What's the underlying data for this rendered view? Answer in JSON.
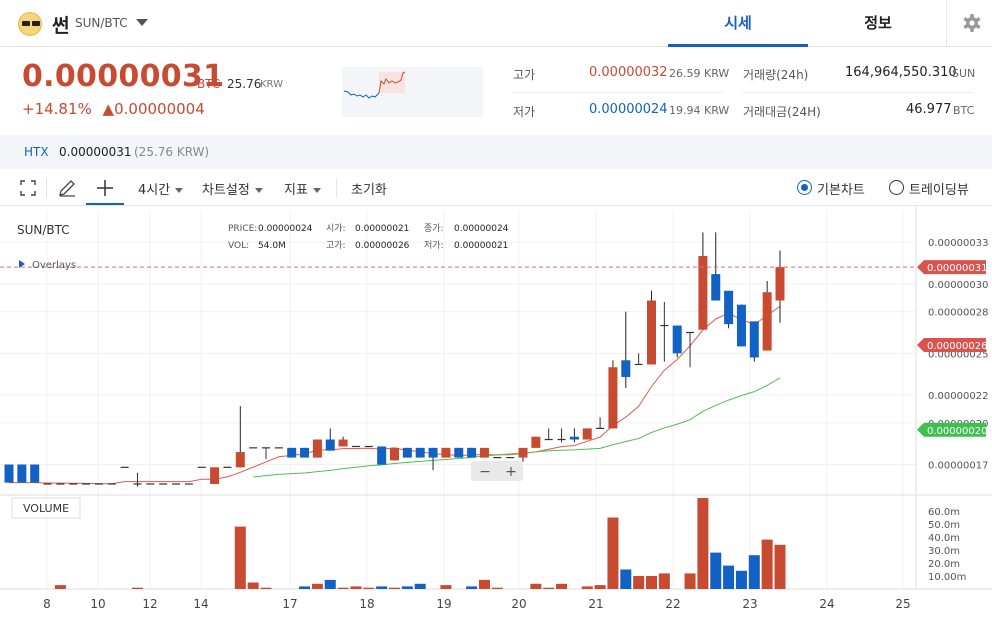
{
  "header": {
    "coin_name": "썬",
    "pair": "SUN/BTC",
    "tabs": [
      {
        "label": "시세",
        "active": true
      },
      {
        "label": "정보",
        "active": false
      }
    ]
  },
  "price": {
    "current": "0.00000031",
    "unit": "BTC",
    "krw": "25.76",
    "krw_unit": "KRW",
    "change_pct": "+14.81%",
    "change_abs": "▲0.00000004"
  },
  "stats": {
    "high_label": "고가",
    "high_value": "0.00000032",
    "high_krw": "26.59 KRW",
    "low_label": "저가",
    "low_value": "0.00000024",
    "low_krw": "19.94 KRW",
    "volume_label": "거래량(24h)",
    "volume_value": "164,964,550.310",
    "volume_unit": "SUN",
    "amount_label": "거래대금(24H)",
    "amount_value": "46.977",
    "amount_unit": "BTC"
  },
  "exchange": {
    "name": "HTX",
    "price": "0.00000031",
    "krw": "(25.76 KRW)"
  },
  "toolbar": {
    "interval": "4시간",
    "chart_settings": "차트설정",
    "indicators": "지표",
    "reset": "초기화",
    "basic_chart": "기본차트",
    "tradingview": "트레이딩뷰"
  },
  "colors": {
    "up": "#c84a31",
    "down": "#1261c4",
    "accent": "#1261c4",
    "ma_fast": "#e05a4f",
    "ma_slow": "#4cc24c"
  },
  "chart_data": {
    "type": "candlestick",
    "title": "SUN/BTC",
    "overlays_label": "Overlays",
    "volume_label": "VOLUME",
    "legend": {
      "price_label": "PRICE:",
      "price": "0.00000024",
      "open_label": "시가:",
      "open": "0.00000021",
      "close_label": "종가:",
      "close": "0.00000024",
      "vol_label": "VOL:",
      "vol": "54.0M",
      "high_label": "고가:",
      "high": "0.00000026",
      "low_label": "저가:",
      "low": "0.00000021"
    },
    "y_ticks": [
      "0.00000033",
      "0.00000030",
      "0.00000028",
      "0.00000025",
      "0.00000022",
      "0.00000020",
      "0.00000017"
    ],
    "y_tick_values": [
      33,
      30,
      28,
      25,
      22,
      20,
      17
    ],
    "price_tags": [
      {
        "label": "0.00000031",
        "value": 31.2,
        "color": "#d9534f"
      },
      {
        "label": "0.00000026",
        "value": 25.6,
        "color": "#d9534f"
      },
      {
        "label": "0.00000020",
        "value": 19.5,
        "color": "#3fbf4f"
      }
    ],
    "vol_ticks": [
      "60.0m",
      "50.0m",
      "40.0m",
      "30.0m",
      "20.0m",
      "10.00m"
    ],
    "vol_tick_values": [
      60,
      50,
      40,
      30,
      20,
      10
    ],
    "x_ticks": [
      "8",
      "10",
      "12",
      "14",
      "17",
      "18",
      "19",
      "20",
      "21",
      "22",
      "23",
      "24",
      "25"
    ],
    "candles": [
      {
        "o": 17.0,
        "h": 17.0,
        "l": 15.7,
        "c": 15.7,
        "v": 0
      },
      {
        "o": 17.0,
        "h": 17.0,
        "l": 15.7,
        "c": 15.7,
        "v": 0
      },
      {
        "o": 17.0,
        "h": 17.0,
        "l": 15.7,
        "c": 15.7,
        "v": 0
      },
      {
        "o": 15.6,
        "h": 15.6,
        "l": 15.6,
        "c": 15.6,
        "v": 0
      },
      {
        "o": 15.6,
        "h": 15.6,
        "l": 15.6,
        "c": 15.6,
        "v": 3
      },
      {
        "o": 15.6,
        "h": 15.6,
        "l": 15.6,
        "c": 15.6,
        "v": 0
      },
      {
        "o": 15.6,
        "h": 15.6,
        "l": 15.6,
        "c": 15.6,
        "v": 0
      },
      {
        "o": 15.6,
        "h": 15.6,
        "l": 15.6,
        "c": 15.6,
        "v": 0
      },
      {
        "o": 15.6,
        "h": 15.6,
        "l": 15.6,
        "c": 15.6,
        "v": 0
      },
      {
        "o": 16.8,
        "h": 16.8,
        "l": 16.8,
        "c": 16.8,
        "v": 0
      },
      {
        "o": 15.6,
        "h": 16.4,
        "l": 15.4,
        "c": 15.6,
        "v": 1
      },
      {
        "o": 15.6,
        "h": 15.6,
        "l": 15.6,
        "c": 15.6,
        "v": 0
      },
      {
        "o": 15.6,
        "h": 15.6,
        "l": 15.6,
        "c": 15.6,
        "v": 0
      },
      {
        "o": 15.6,
        "h": 15.6,
        "l": 15.6,
        "c": 15.6,
        "v": 0
      },
      {
        "o": 15.6,
        "h": 15.6,
        "l": 15.6,
        "c": 15.6,
        "v": 0
      },
      {
        "o": 16.8,
        "h": 16.8,
        "l": 16.8,
        "c": 16.8,
        "v": 0
      },
      {
        "o": 15.6,
        "h": 16.8,
        "l": 15.6,
        "c": 16.8,
        "v": 0
      },
      {
        "o": 16.8,
        "h": 16.8,
        "l": 16.8,
        "c": 16.8,
        "v": 0
      },
      {
        "o": 16.8,
        "h": 21.2,
        "l": 16.8,
        "c": 17.9,
        "v": 48
      },
      {
        "o": 18.2,
        "h": 18.2,
        "l": 18.2,
        "c": 18.2,
        "v": 5
      },
      {
        "o": 18.2,
        "h": 18.2,
        "l": 17.4,
        "c": 18.2,
        "v": 1
      },
      {
        "o": 18.2,
        "h": 18.2,
        "l": 18.2,
        "c": 18.2,
        "v": 0
      },
      {
        "o": 18.2,
        "h": 18.2,
        "l": 17.5,
        "c": 17.5,
        "v": 0
      },
      {
        "o": 18.2,
        "h": 18.2,
        "l": 17.5,
        "c": 17.5,
        "v": 2
      },
      {
        "o": 17.5,
        "h": 18.8,
        "l": 17.5,
        "c": 18.8,
        "v": 4
      },
      {
        "o": 18.8,
        "h": 19.6,
        "l": 18.0,
        "c": 18.0,
        "v": 7
      },
      {
        "o": 18.3,
        "h": 19.0,
        "l": 18.3,
        "c": 18.8,
        "v": 1
      },
      {
        "o": 18.3,
        "h": 18.3,
        "l": 18.3,
        "c": 18.3,
        "v": 2
      },
      {
        "o": 18.3,
        "h": 18.3,
        "l": 18.3,
        "c": 18.3,
        "v": 1
      },
      {
        "o": 18.3,
        "h": 18.3,
        "l": 17.0,
        "c": 17.0,
        "v": 2
      },
      {
        "o": 17.3,
        "h": 18.2,
        "l": 17.3,
        "c": 18.2,
        "v": 1
      },
      {
        "o": 18.2,
        "h": 18.2,
        "l": 17.5,
        "c": 17.5,
        "v": 2
      },
      {
        "o": 18.2,
        "h": 18.2,
        "l": 17.5,
        "c": 17.5,
        "v": 4
      },
      {
        "o": 18.2,
        "h": 18.2,
        "l": 16.6,
        "c": 17.5,
        "v": 0
      },
      {
        "o": 17.5,
        "h": 18.2,
        "l": 17.5,
        "c": 18.2,
        "v": 3
      },
      {
        "o": 18.2,
        "h": 18.2,
        "l": 17.5,
        "c": 17.5,
        "v": 0
      },
      {
        "o": 18.2,
        "h": 18.2,
        "l": 17.5,
        "c": 17.5,
        "v": 2
      },
      {
        "o": 17.5,
        "h": 18.2,
        "l": 17.5,
        "c": 18.2,
        "v": 7
      },
      {
        "o": 17.5,
        "h": 17.5,
        "l": 17.5,
        "c": 17.5,
        "v": 1
      },
      {
        "o": 17.5,
        "h": 17.5,
        "l": 17.5,
        "c": 17.5,
        "v": 0
      },
      {
        "o": 17.5,
        "h": 18.2,
        "l": 17.2,
        "c": 18.2,
        "v": 0
      },
      {
        "o": 18.2,
        "h": 19.0,
        "l": 18.2,
        "c": 19.0,
        "v": 4
      },
      {
        "o": 18.8,
        "h": 19.6,
        "l": 18.8,
        "c": 18.8,
        "v": 1
      },
      {
        "o": 18.8,
        "h": 19.6,
        "l": 18.6,
        "c": 18.8,
        "v": 4
      },
      {
        "o": 19.0,
        "h": 19.6,
        "l": 18.6,
        "c": 18.8,
        "v": 0
      },
      {
        "o": 18.8,
        "h": 19.6,
        "l": 18.8,
        "c": 19.6,
        "v": 2
      },
      {
        "o": 19.6,
        "h": 20.4,
        "l": 19.6,
        "c": 19.6,
        "v": 3
      },
      {
        "o": 19.6,
        "h": 24.5,
        "l": 19.6,
        "c": 24.0,
        "v": 55
      },
      {
        "o": 24.5,
        "h": 28.0,
        "l": 22.5,
        "c": 23.3,
        "v": 15
      },
      {
        "o": 24.2,
        "h": 25.0,
        "l": 24.2,
        "c": 24.2,
        "v": 10
      },
      {
        "o": 24.2,
        "h": 29.5,
        "l": 24.2,
        "c": 28.8,
        "v": 10
      },
      {
        "o": 27.0,
        "h": 28.7,
        "l": 24.4,
        "c": 27.0,
        "v": 12
      },
      {
        "o": 27.0,
        "h": 27.0,
        "l": 24.7,
        "c": 25.0,
        "v": 0
      },
      {
        "o": 26.5,
        "h": 26.5,
        "l": 24.0,
        "c": 26.5,
        "v": 12
      },
      {
        "o": 26.7,
        "h": 33.7,
        "l": 26.7,
        "c": 32.0,
        "v": 70
      },
      {
        "o": 30.7,
        "h": 33.7,
        "l": 28.8,
        "c": 28.8,
        "v": 28
      },
      {
        "o": 29.5,
        "h": 29.5,
        "l": 26.8,
        "c": 27.1,
        "v": 18
      },
      {
        "o": 28.5,
        "h": 28.5,
        "l": 25.5,
        "c": 25.5,
        "v": 14
      },
      {
        "o": 27.3,
        "h": 27.3,
        "l": 24.4,
        "c": 24.7,
        "v": 26
      },
      {
        "o": 25.2,
        "h": 30.2,
        "l": 25.2,
        "c": 29.4,
        "v": 38
      },
      {
        "o": 28.8,
        "h": 32.4,
        "l": 27.2,
        "c": 31.2,
        "v": 34
      }
    ]
  }
}
